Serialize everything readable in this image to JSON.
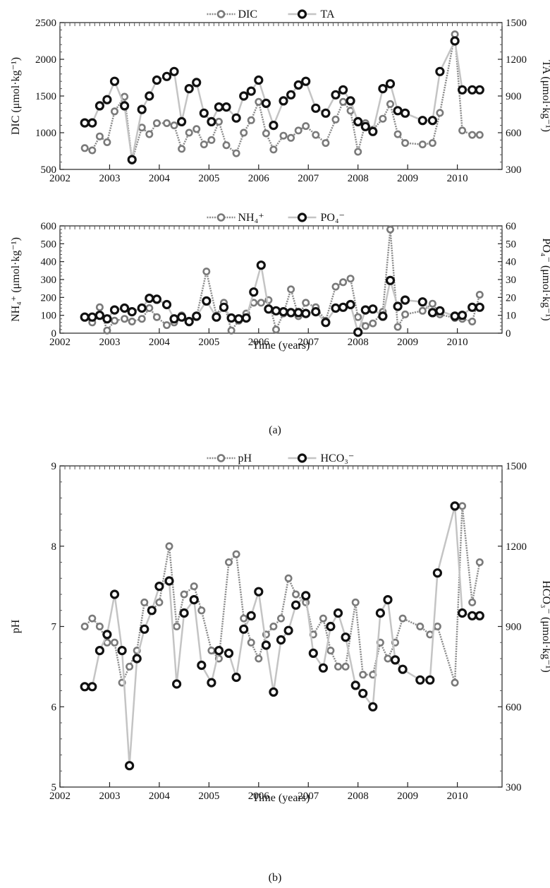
{
  "captions": [
    "(a)",
    "(b)"
  ],
  "chart_data": [
    {
      "type": "line",
      "panel": "a-top",
      "xlabel": "",
      "ylabel": "DIC (μmol·kg⁻¹)",
      "y2label": "TA (μmol·kg⁻¹)",
      "xlim": [
        2002,
        2010.9
      ],
      "ylim": [
        500,
        2500
      ],
      "y2lim": [
        300,
        1500
      ],
      "xticks": [
        "2002",
        "2003",
        "2004",
        "2005",
        "2006",
        "2007",
        "2008",
        "2009",
        "2010"
      ],
      "yticks": [
        "500",
        "1000",
        "1500",
        "2000",
        "2500"
      ],
      "y2ticks": [
        "300",
        "600",
        "900",
        "1200",
        "1500"
      ],
      "legend_position": "top-center",
      "series": [
        {
          "name": "DIC",
          "axis": "left",
          "color": "#7a7a7a",
          "x": [
            2002.5,
            2002.65,
            2002.8,
            2002.95,
            2003.1,
            2003.3,
            2003.45,
            2003.65,
            2003.8,
            2003.95,
            2004.15,
            2004.3,
            2004.45,
            2004.6,
            2004.75,
            2004.9,
            2005.05,
            2005.2,
            2005.35,
            2005.55,
            2005.7,
            2005.85,
            2006.0,
            2006.15,
            2006.3,
            2006.5,
            2006.65,
            2006.8,
            2006.95,
            2007.15,
            2007.35,
            2007.55,
            2007.7,
            2007.85,
            2008.0,
            2008.15,
            2008.3,
            2008.5,
            2008.65,
            2008.8,
            2008.95,
            2009.3,
            2009.5,
            2009.65,
            2009.95,
            2010.1,
            2010.3,
            2010.45
          ],
          "values": [
            790,
            760,
            950,
            870,
            1290,
            1490,
            620,
            1070,
            980,
            1130,
            1130,
            1100,
            780,
            1000,
            1050,
            840,
            900,
            1150,
            830,
            720,
            1000,
            1170,
            1420,
            990,
            770,
            960,
            930,
            1030,
            1090,
            970,
            860,
            1180,
            1420,
            1300,
            740,
            1130,
            1040,
            1190,
            1390,
            980,
            860,
            840,
            860,
            1270,
            2340,
            1030,
            970,
            970
          ]
        },
        {
          "name": "TA",
          "axis": "right",
          "color": "#111111",
          "x": [
            2002.5,
            2002.65,
            2002.8,
            2002.95,
            2003.1,
            2003.3,
            2003.45,
            2003.65,
            2003.8,
            2003.95,
            2004.15,
            2004.3,
            2004.45,
            2004.6,
            2004.75,
            2004.9,
            2005.05,
            2005.2,
            2005.35,
            2005.55,
            2005.7,
            2005.85,
            2006.0,
            2006.15,
            2006.3,
            2006.5,
            2006.65,
            2006.8,
            2006.95,
            2007.15,
            2007.35,
            2007.55,
            2007.7,
            2007.85,
            2008.0,
            2008.15,
            2008.3,
            2008.5,
            2008.65,
            2008.8,
            2008.95,
            2009.3,
            2009.5,
            2009.65,
            2009.95,
            2010.1,
            2010.3,
            2010.45
          ],
          "values": [
            680,
            680,
            820,
            870,
            1020,
            820,
            380,
            790,
            900,
            1030,
            1060,
            1100,
            690,
            960,
            1010,
            760,
            690,
            810,
            810,
            720,
            900,
            940,
            1030,
            840,
            660,
            860,
            910,
            990,
            1020,
            800,
            760,
            910,
            950,
            860,
            690,
            650,
            610,
            960,
            1000,
            780,
            760,
            700,
            700,
            1100,
            1350,
            950,
            950,
            950
          ]
        }
      ]
    },
    {
      "type": "line",
      "panel": "a-bottom",
      "xlabel": "Time (years)",
      "ylabel": "NH₄⁺ (μmol·kg⁻¹)",
      "y2label": "PO₄⁻ (μmol·kg⁻¹)",
      "xlim": [
        2002,
        2010.9
      ],
      "ylim": [
        0,
        600
      ],
      "y2lim": [
        0,
        60
      ],
      "xticks": [
        "2002",
        "2003",
        "2004",
        "2005",
        "2006",
        "2007",
        "2008",
        "2009",
        "2010"
      ],
      "yticks": [
        "0",
        "100",
        "200",
        "300",
        "400",
        "500",
        "600"
      ],
      "y2ticks": [
        "0",
        "10",
        "20",
        "30",
        "40",
        "50",
        "60"
      ],
      "legend_position": "top-center",
      "series": [
        {
          "name": "NH₄⁺",
          "axis": "left",
          "color": "#7a7a7a",
          "x": [
            2002.5,
            2002.65,
            2002.8,
            2002.95,
            2003.1,
            2003.3,
            2003.45,
            2003.65,
            2003.8,
            2003.95,
            2004.15,
            2004.3,
            2004.45,
            2004.6,
            2004.75,
            2004.95,
            2005.15,
            2005.3,
            2005.45,
            2005.6,
            2005.75,
            2005.9,
            2006.05,
            2006.2,
            2006.35,
            2006.5,
            2006.65,
            2006.8,
            2006.95,
            2007.15,
            2007.35,
            2007.55,
            2007.7,
            2007.85,
            2008.0,
            2008.15,
            2008.3,
            2008.5,
            2008.65,
            2008.8,
            2008.95,
            2009.3,
            2009.5,
            2009.65,
            2009.95,
            2010.1,
            2010.3,
            2010.45
          ],
          "values": [
            90,
            60,
            145,
            15,
            70,
            80,
            65,
            80,
            140,
            90,
            45,
            60,
            100,
            60,
            90,
            345,
            100,
            170,
            15,
            70,
            110,
            170,
            170,
            185,
            20,
            110,
            245,
            95,
            170,
            145,
            70,
            260,
            285,
            305,
            90,
            40,
            55,
            120,
            580,
            35,
            105,
            125,
            165,
            105,
            85,
            80,
            65,
            215
          ]
        },
        {
          "name": "PO₄⁻",
          "axis": "right",
          "color": "#111111",
          "x": [
            2002.5,
            2002.65,
            2002.8,
            2002.95,
            2003.1,
            2003.3,
            2003.45,
            2003.65,
            2003.8,
            2003.95,
            2004.15,
            2004.3,
            2004.45,
            2004.6,
            2004.75,
            2004.95,
            2005.15,
            2005.3,
            2005.45,
            2005.6,
            2005.75,
            2005.9,
            2006.05,
            2006.2,
            2006.35,
            2006.5,
            2006.65,
            2006.8,
            2006.95,
            2007.15,
            2007.35,
            2007.55,
            2007.7,
            2007.85,
            2008.0,
            2008.15,
            2008.3,
            2008.5,
            2008.65,
            2008.8,
            2008.95,
            2009.3,
            2009.5,
            2009.65,
            2009.95,
            2010.1,
            2010.3,
            2010.45
          ],
          "values": [
            9,
            9,
            10,
            8,
            13,
            14,
            12,
            14,
            19.5,
            19,
            16,
            8,
            9,
            6.5,
            9.5,
            18,
            9,
            14.5,
            8.5,
            8,
            8.5,
            23,
            38,
            13.5,
            12.5,
            12,
            11.5,
            11.5,
            11,
            12,
            6,
            14,
            14.5,
            16,
            0.5,
            13,
            13.5,
            9.5,
            29.5,
            15,
            18.5,
            17.5,
            11.5,
            12.5,
            9.5,
            10,
            14.5,
            14.5
          ]
        }
      ]
    },
    {
      "type": "line",
      "panel": "b",
      "xlabel": "Time (years)",
      "ylabel": "pH",
      "y2label": "HCO₃⁻ (μmol·kg⁻¹)",
      "xlim": [
        2002,
        2010.9
      ],
      "ylim": [
        5,
        9
      ],
      "y2lim": [
        300,
        1500
      ],
      "xticks": [
        "2002",
        "2003",
        "2004",
        "2005",
        "2006",
        "2007",
        "2008",
        "2009",
        "2010"
      ],
      "yticks": [
        "5",
        "6",
        "7",
        "8",
        "9"
      ],
      "y2ticks": [
        "300",
        "600",
        "900",
        "1200",
        "1500"
      ],
      "legend_position": "top-center",
      "series": [
        {
          "name": "pH",
          "axis": "left",
          "color": "#7a7a7a",
          "x": [
            2002.5,
            2002.65,
            2002.8,
            2002.95,
            2003.1,
            2003.25,
            2003.4,
            2003.55,
            2003.7,
            2003.85,
            2004.0,
            2004.2,
            2004.35,
            2004.5,
            2004.7,
            2004.85,
            2005.05,
            2005.2,
            2005.4,
            2005.55,
            2005.7,
            2005.85,
            2006.0,
            2006.15,
            2006.3,
            2006.45,
            2006.6,
            2006.75,
            2006.95,
            2007.1,
            2007.3,
            2007.45,
            2007.6,
            2007.75,
            2007.95,
            2008.1,
            2008.3,
            2008.45,
            2008.6,
            2008.75,
            2008.9,
            2009.25,
            2009.45,
            2009.6,
            2009.95,
            2010.1,
            2010.3,
            2010.45
          ],
          "values": [
            7.0,
            7.1,
            7.0,
            6.8,
            6.8,
            6.3,
            6.5,
            6.7,
            7.3,
            7.2,
            7.3,
            8.0,
            7.0,
            7.4,
            7.5,
            7.2,
            6.7,
            6.6,
            7.8,
            7.9,
            7.1,
            6.8,
            6.6,
            6.9,
            7.0,
            7.1,
            7.6,
            7.4,
            7.3,
            6.9,
            7.1,
            6.7,
            6.5,
            6.5,
            7.3,
            6.4,
            6.4,
            6.8,
            6.6,
            6.8,
            7.1,
            7.0,
            6.9,
            7.0,
            6.3,
            8.5,
            7.3,
            7.8
          ]
        },
        {
          "name": "HCO₃⁻",
          "axis": "right",
          "color": "#111111",
          "x": [
            2002.5,
            2002.65,
            2002.8,
            2002.95,
            2003.1,
            2003.25,
            2003.4,
            2003.55,
            2003.7,
            2003.85,
            2004.0,
            2004.2,
            2004.35,
            2004.5,
            2004.7,
            2004.85,
            2005.05,
            2005.2,
            2005.4,
            2005.55,
            2005.7,
            2005.85,
            2006.0,
            2006.15,
            2006.3,
            2006.45,
            2006.6,
            2006.75,
            2006.95,
            2007.1,
            2007.3,
            2007.45,
            2007.6,
            2007.75,
            2007.95,
            2008.1,
            2008.3,
            2008.45,
            2008.6,
            2008.75,
            2008.9,
            2009.25,
            2009.45,
            2009.6,
            2009.95,
            2010.1,
            2010.3,
            2010.45
          ],
          "values": [
            675,
            675,
            810,
            870,
            1020,
            810,
            380,
            780,
            890,
            960,
            1050,
            1070,
            685,
            950,
            1000,
            755,
            690,
            810,
            800,
            710,
            890,
            940,
            1030,
            830,
            655,
            850,
            885,
            980,
            1015,
            800,
            745,
            900,
            950,
            860,
            680,
            650,
            600,
            950,
            1000,
            775,
            740,
            700,
            700,
            1100,
            1350,
            950,
            940,
            940
          ]
        }
      ]
    }
  ]
}
